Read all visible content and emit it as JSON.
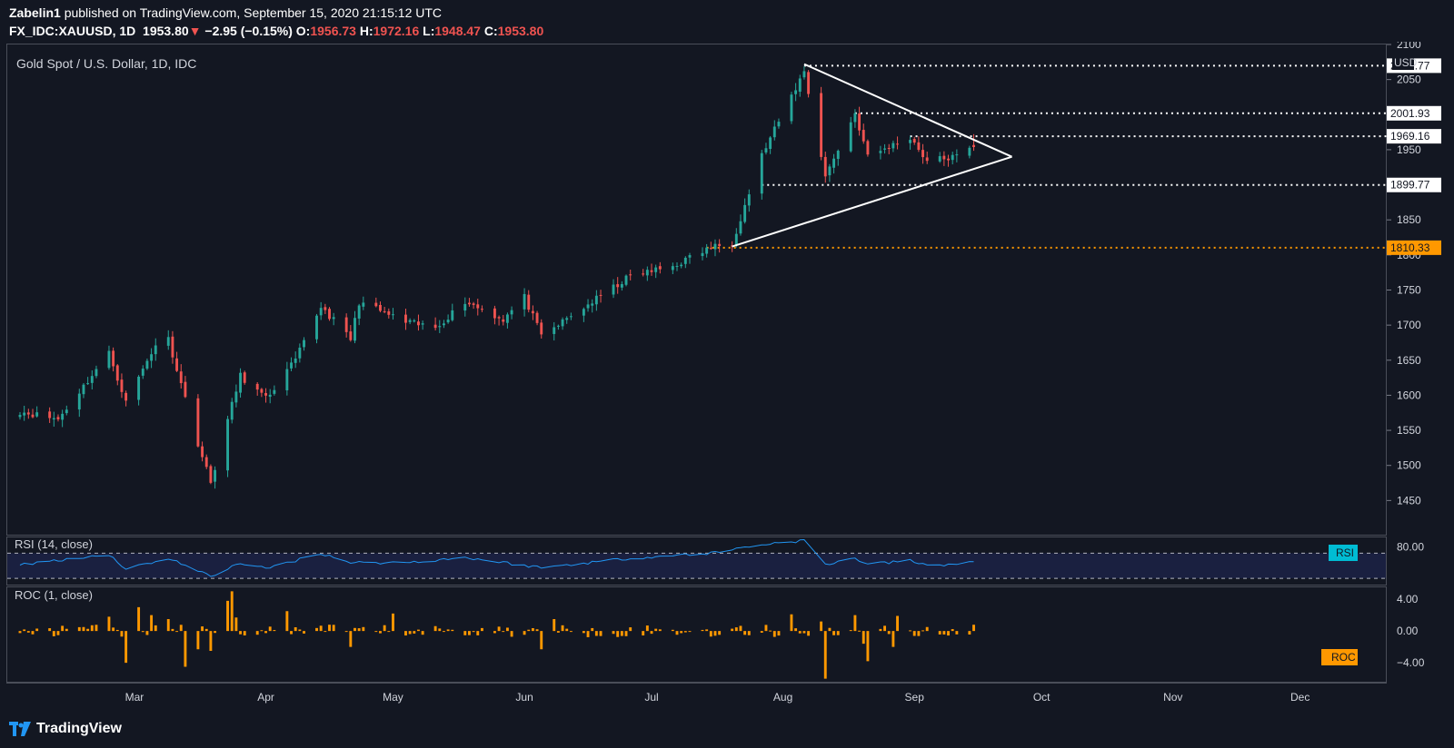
{
  "header": {
    "author": "Zabelin1",
    "published_text": "published on TradingView.com, September 15, 2020 21:15:12 UTC",
    "symbol": "FX_IDC:XAUUSD, 1D",
    "last": "1953.80",
    "change": "−2.95 (−0.15%)",
    "o_label": "O:",
    "o": "1956.73",
    "h_label": "H:",
    "h": "1972.16",
    "l_label": "L:",
    "l": "1948.47",
    "c_label": "C:",
    "c": "1953.80"
  },
  "footer": {
    "brand": "TradingView"
  },
  "colors": {
    "up": "#26a69a",
    "down": "#ef5350",
    "bg": "#131722",
    "rsi": "#2196f3",
    "roc": "#ff9800",
    "orange_level": "#ff9800",
    "level": "#ffffff"
  },
  "chart_data": [
    {
      "type": "candlestick",
      "title": "Gold Spot / U.S. Dollar, 1D, IDC",
      "y_unit": "USD",
      "ylim": [
        1400,
        2100
      ],
      "y_ticks": [
        1450,
        1500,
        1550,
        1600,
        1650,
        1700,
        1750,
        1800,
        1850,
        1900,
        1950,
        2000,
        2050,
        2100
      ],
      "x_ticks": [
        "Mar",
        "Apr",
        "May",
        "Jun",
        "Jul",
        "Aug",
        "Sep",
        "Oct",
        "Nov",
        "Dec"
      ],
      "levels": [
        {
          "value": 2069.77,
          "label": "2069.77",
          "color": "#ffffff",
          "style": "dotted"
        },
        {
          "value": 2001.93,
          "label": "2001.93",
          "color": "#ffffff",
          "style": "dotted"
        },
        {
          "value": 1969.16,
          "label": "1969.16",
          "color": "#ffffff",
          "style": "dotted"
        },
        {
          "value": 1899.77,
          "label": "1899.77",
          "color": "#ffffff",
          "style": "dotted"
        },
        {
          "value": 1810.33,
          "label": "1810.33",
          "color": "#ff9800",
          "style": "dotted"
        }
      ],
      "triangle": {
        "upper": {
          "start": [
            "2020-08-06",
            2072
          ],
          "end": [
            "2020-09-24",
            1940
          ]
        },
        "lower": {
          "start": [
            "2020-07-20",
            1812
          ],
          "end": [
            "2020-09-24",
            1940
          ]
        }
      },
      "anchors": [
        [
          "2020-02-03",
          1577
        ],
        [
          "2020-02-12",
          1566
        ],
        [
          "2020-02-24",
          1660
        ],
        [
          "2020-02-28",
          1590
        ],
        [
          "2020-03-06",
          1673
        ],
        [
          "2020-03-09",
          1680
        ],
        [
          "2020-03-16",
          1532
        ],
        [
          "2020-03-19",
          1475
        ],
        [
          "2020-03-23",
          1565
        ],
        [
          "2020-03-26",
          1628
        ],
        [
          "2020-04-01",
          1595
        ],
        [
          "2020-04-08",
          1650
        ],
        [
          "2020-04-14",
          1727
        ],
        [
          "2020-04-21",
          1680
        ],
        [
          "2020-04-23",
          1733
        ],
        [
          "2020-05-04",
          1704
        ],
        [
          "2020-05-11",
          1696
        ],
        [
          "2020-05-18",
          1734
        ],
        [
          "2020-05-27",
          1708
        ],
        [
          "2020-06-01",
          1740
        ],
        [
          "2020-06-05",
          1684
        ],
        [
          "2020-06-15",
          1725
        ],
        [
          "2020-06-26",
          1770
        ],
        [
          "2020-07-06",
          1784
        ],
        [
          "2020-07-15",
          1811
        ],
        [
          "2020-07-20",
          1817
        ],
        [
          "2020-07-27",
          1942
        ],
        [
          "2020-08-06",
          2062
        ],
        [
          "2020-08-11",
          1912
        ],
        [
          "2020-08-18",
          2002
        ],
        [
          "2020-08-21",
          1940
        ],
        [
          "2020-08-31",
          1968
        ],
        [
          "2020-09-04",
          1934
        ],
        [
          "2020-09-11",
          1940
        ],
        [
          "2020-09-15",
          1954
        ]
      ],
      "last_candle": {
        "date": "2020-09-15",
        "open": 1956.73,
        "high": 1972.16,
        "low": 1948.47,
        "close": 1953.8
      }
    },
    {
      "type": "line",
      "title": "RSI (14, close)",
      "badge": "RSI",
      "ylim": [
        20,
        95
      ],
      "y_ticks": [
        80
      ],
      "bands": [
        70,
        30
      ],
      "anchors": [
        [
          "2020-02-03",
          52
        ],
        [
          "2020-02-24",
          68
        ],
        [
          "2020-02-28",
          45
        ],
        [
          "2020-03-09",
          62
        ],
        [
          "2020-03-19",
          33
        ],
        [
          "2020-03-26",
          55
        ],
        [
          "2020-04-01",
          45
        ],
        [
          "2020-04-14",
          70
        ],
        [
          "2020-04-21",
          55
        ],
        [
          "2020-05-04",
          55
        ],
        [
          "2020-05-18",
          63
        ],
        [
          "2020-06-05",
          47
        ],
        [
          "2020-06-26",
          62
        ],
        [
          "2020-07-15",
          70
        ],
        [
          "2020-07-27",
          84
        ],
        [
          "2020-08-06",
          90
        ],
        [
          "2020-08-11",
          52
        ],
        [
          "2020-08-18",
          62
        ],
        [
          "2020-08-21",
          52
        ],
        [
          "2020-08-31",
          58
        ],
        [
          "2020-09-04",
          50
        ],
        [
          "2020-09-15",
          55
        ]
      ]
    },
    {
      "type": "bar",
      "title": "ROC (1, close)",
      "badge": "ROC",
      "ylim": [
        -6.5,
        5.5
      ],
      "y_ticks": [
        4.0,
        0.0,
        -4.0
      ],
      "y_tick_labels": [
        "4.00",
        "0.00",
        "−4.00"
      ],
      "spikes": [
        [
          "2020-02-24",
          1.8
        ],
        [
          "2020-02-28",
          -4.0
        ],
        [
          "2020-03-02",
          3.0
        ],
        [
          "2020-03-05",
          2.0
        ],
        [
          "2020-03-09",
          1.5
        ],
        [
          "2020-03-13",
          -4.5
        ],
        [
          "2020-03-16",
          -2.3
        ],
        [
          "2020-03-19",
          -2.5
        ],
        [
          "2020-03-23",
          3.8
        ],
        [
          "2020-03-24",
          5.0
        ],
        [
          "2020-03-25",
          1.7
        ],
        [
          "2020-04-06",
          2.5
        ],
        [
          "2020-04-21",
          -2.0
        ],
        [
          "2020-05-01",
          2.2
        ],
        [
          "2020-06-05",
          -2.3
        ],
        [
          "2020-06-08",
          1.5
        ],
        [
          "2020-08-03",
          2.1
        ],
        [
          "2020-08-10",
          1.2
        ],
        [
          "2020-08-11",
          -6.0
        ],
        [
          "2020-08-18",
          2.0
        ],
        [
          "2020-08-20",
          -1.6
        ],
        [
          "2020-08-21",
          -3.8
        ],
        [
          "2020-08-27",
          -2.0
        ],
        [
          "2020-08-28",
          1.9
        ]
      ]
    }
  ]
}
